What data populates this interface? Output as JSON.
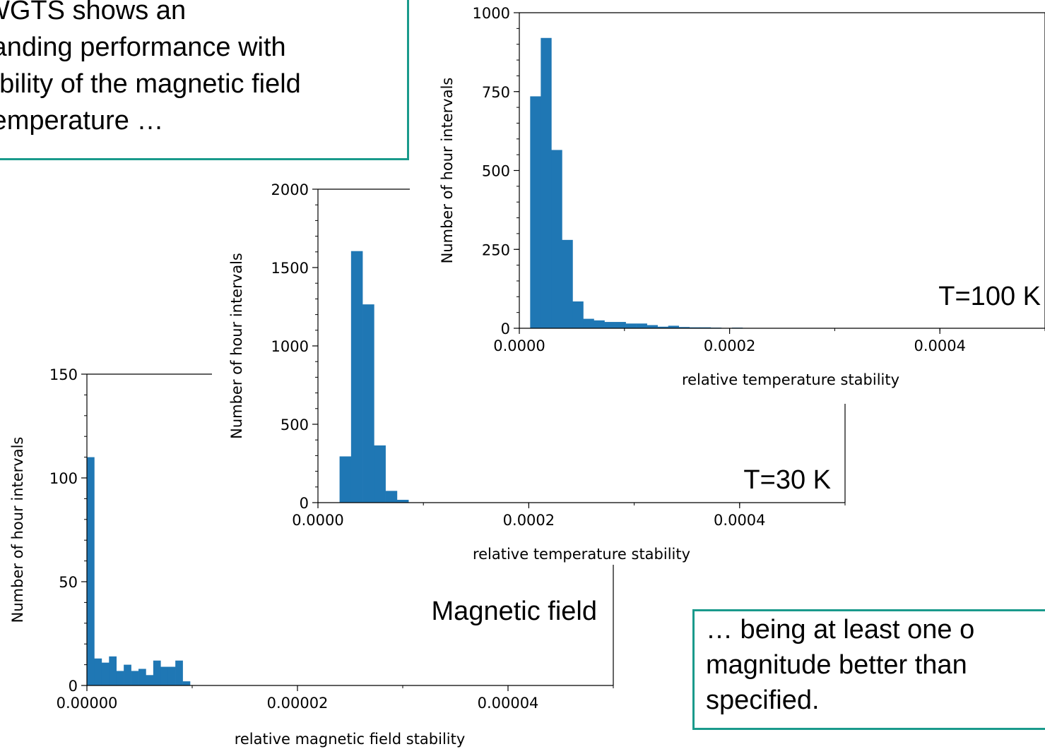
{
  "callout_top": {
    "lines": [
      "WGTS shows an",
      "tanding performance with",
      "ability of the magnetic field",
      "temperature  …"
    ],
    "border_color": "#1a9a8c"
  },
  "callout_bottom": {
    "lines": [
      "… being at least one o",
      "magnitude better than",
      "specified."
    ],
    "border_color": "#1a9a8c"
  },
  "chart_data": [
    {
      "type": "bar",
      "title": "",
      "annotation": "Magnetic field",
      "xlabel": "relative magnetic field stability",
      "ylabel": "Number of hour intervals",
      "xlim": [
        0,
        5e-05
      ],
      "ylim": [
        0,
        150
      ],
      "xticks": [
        "0.00000",
        "0.00002",
        "0.00004"
      ],
      "xtick_values": [
        0,
        2e-05,
        4e-05
      ],
      "yticks": [
        "0",
        "50",
        "100",
        "150"
      ],
      "ytick_values": [
        0,
        50,
        100,
        150
      ],
      "bin_width": 7e-07,
      "bin_start": 0,
      "values": [
        110,
        13,
        11,
        14,
        7,
        10,
        7,
        8,
        5,
        12,
        9,
        9,
        12,
        2
      ],
      "color": "#1f77b4"
    },
    {
      "type": "bar",
      "title": "",
      "annotation": "T=30 K",
      "xlabel": "relative temperature stability",
      "ylabel": "Number of hour intervals",
      "xlim": [
        0,
        0.0005
      ],
      "ylim": [
        0,
        2000
      ],
      "xticks": [
        "0.0000",
        "0.0002",
        "0.0004"
      ],
      "xtick_values": [
        0,
        0.0002,
        0.0004
      ],
      "yticks": [
        "0",
        "500",
        "1000",
        "1500",
        "2000"
      ],
      "ytick_values": [
        0,
        500,
        1000,
        1500,
        2000
      ],
      "bin_width": 1.09e-05,
      "bin_start": 2.05e-05,
      "values": [
        295,
        1605,
        1265,
        365,
        75,
        18
      ],
      "color": "#1f77b4"
    },
    {
      "type": "bar",
      "title": "",
      "annotation": "T=100 K",
      "xlabel": "relative temperature stability",
      "ylabel": "Number of hour intervals",
      "xlim": [
        0,
        0.0005
      ],
      "ylim": [
        0,
        1000
      ],
      "xticks": [
        "0.0000",
        "0.0002",
        "0.0004"
      ],
      "xtick_values": [
        0,
        0.0002,
        0.0004
      ],
      "yticks": [
        "0",
        "250",
        "500",
        "750",
        "1000"
      ],
      "ytick_values": [
        0,
        250,
        500,
        750,
        1000
      ],
      "bin_width": 1.01e-05,
      "bin_start": 1.03e-05,
      "values": [
        735,
        920,
        565,
        280,
        85,
        30,
        25,
        20,
        20,
        15,
        15,
        10,
        5,
        8,
        4,
        3,
        3,
        2,
        1,
        2,
        1,
        1,
        1,
        1,
        1
      ],
      "color": "#1f77b4"
    }
  ]
}
